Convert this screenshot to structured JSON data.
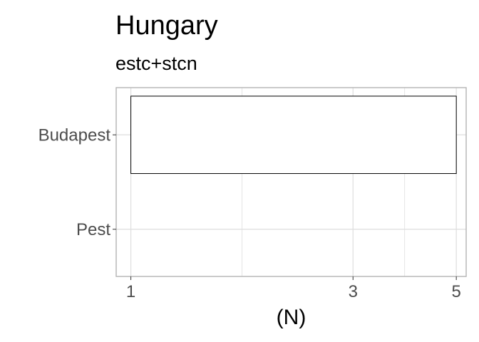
{
  "chart_data": {
    "type": "bar",
    "orientation": "horizontal",
    "title": "Hungary",
    "subtitle": "estc+stcn",
    "xlabel": "(N)",
    "ylabel": "",
    "x_scale": "log",
    "xlim": [
      0.93,
      5.25
    ],
    "x_ticks": [
      1,
      3,
      5
    ],
    "x_tick_labels": [
      "1",
      "3",
      "5"
    ],
    "categories": [
      "Budapest",
      "Pest"
    ],
    "values": [
      5,
      1
    ],
    "grid": true,
    "legend": "none",
    "colors": {
      "bar_fill": "#ffffff",
      "bar_stroke": "#000000",
      "grid": "#dedede",
      "panel_border": "#b3b3b3",
      "tick_label": "#4d4d4d"
    }
  }
}
